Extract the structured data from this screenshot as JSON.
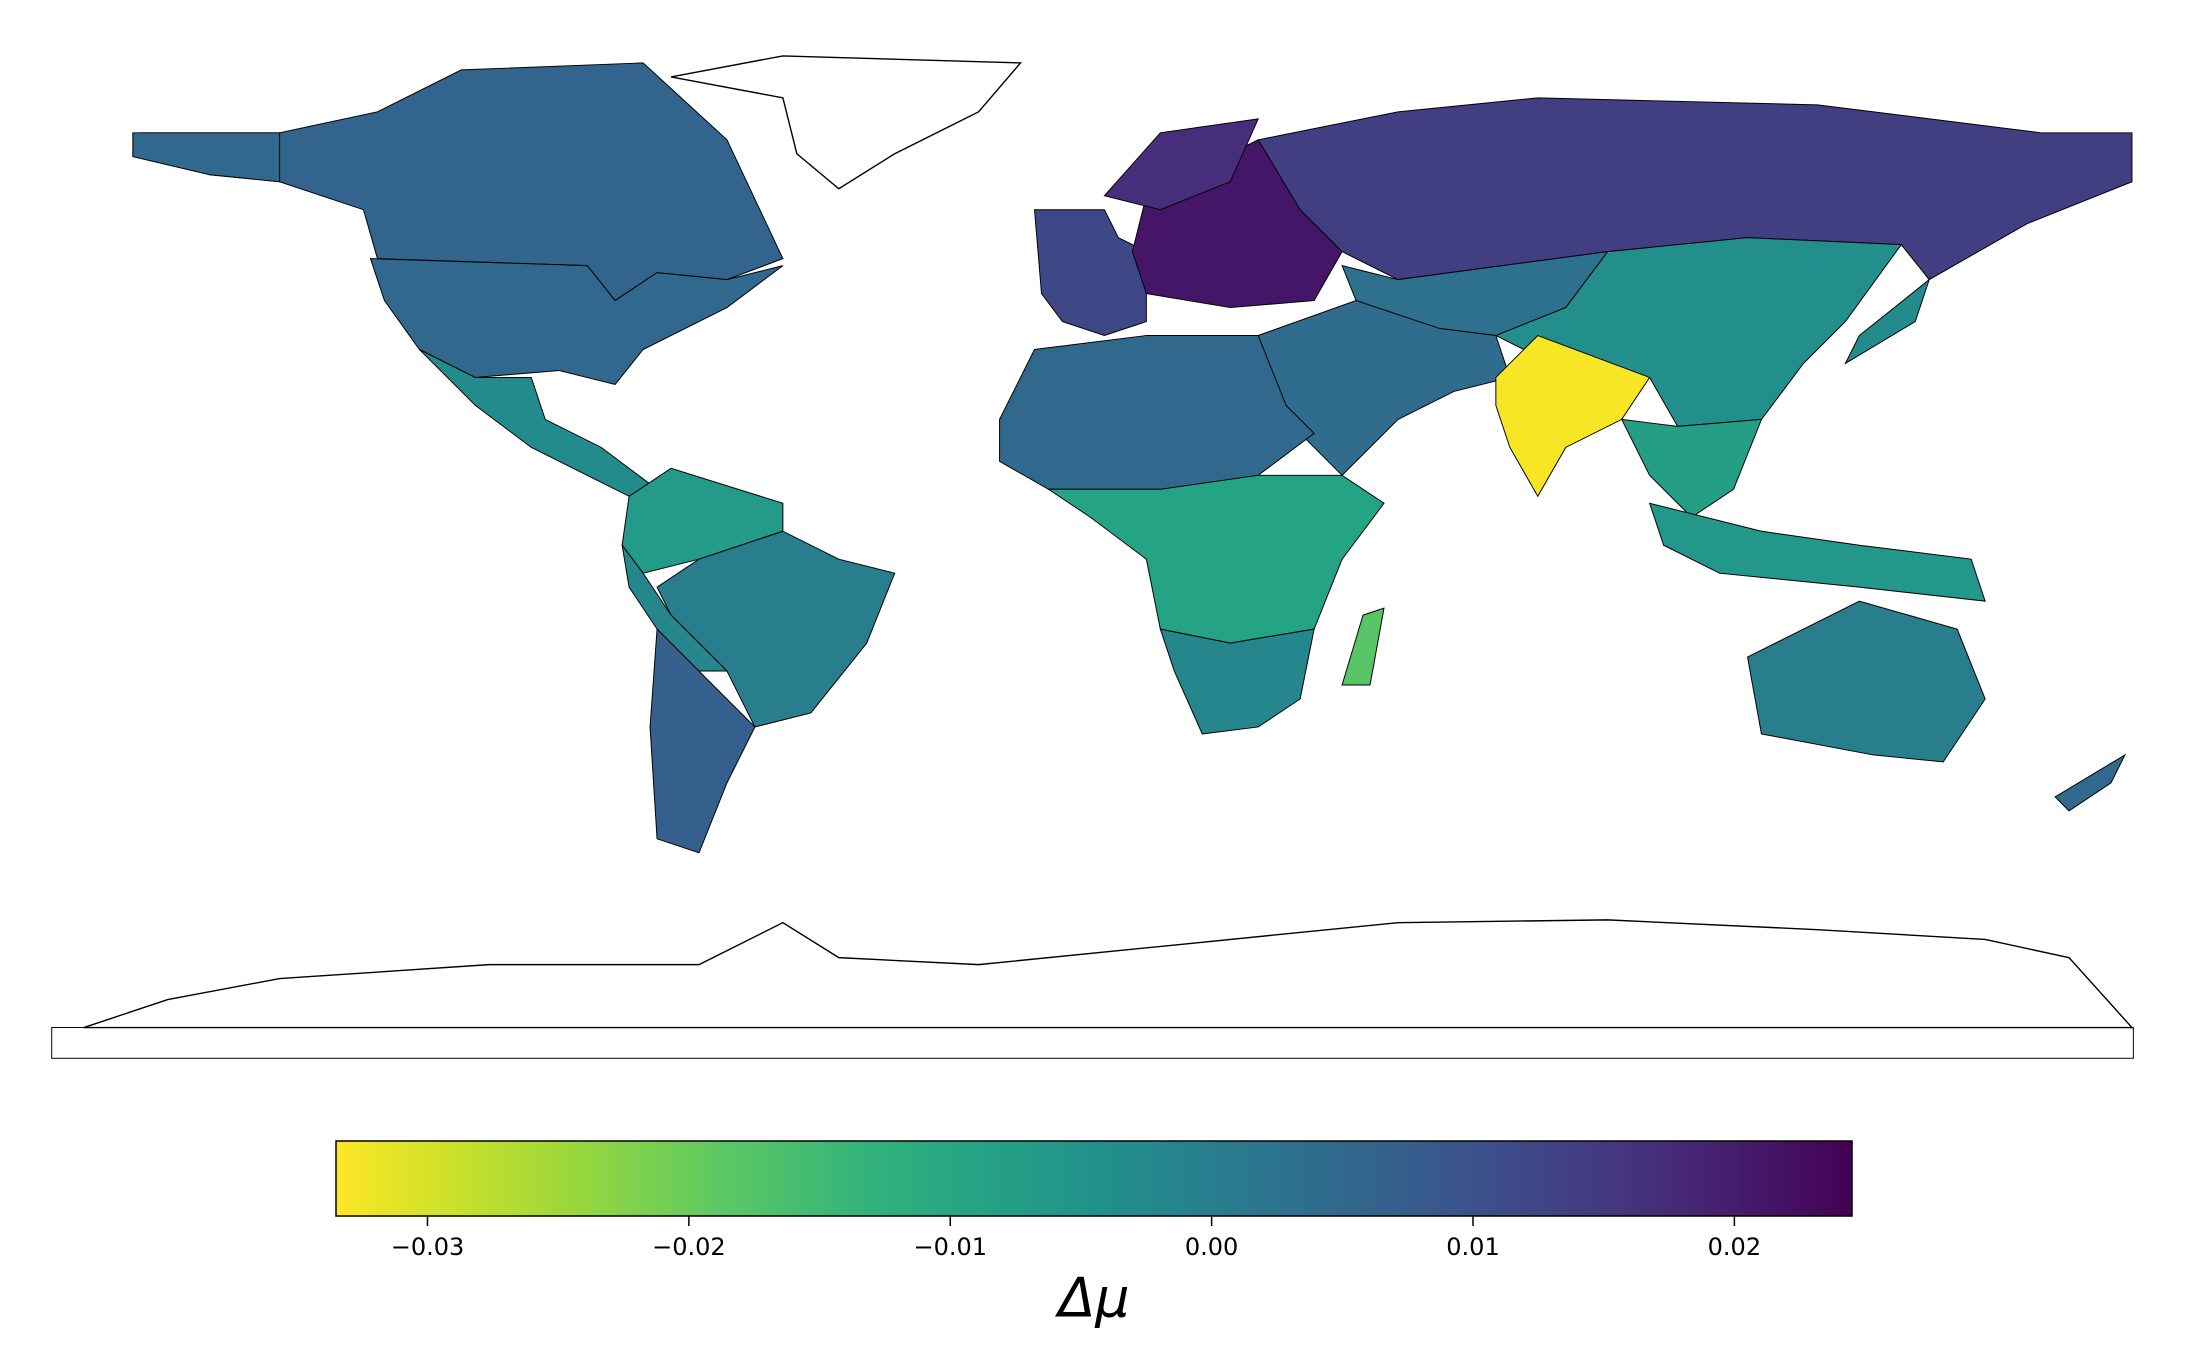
{
  "chart_data": {
    "type": "choropleth",
    "colormap": "viridis_r",
    "values": [
      0.006,
      0.005,
      0.005,
      -0.003,
      -0.007,
      0.0,
      -0.002,
      0.007,
      0.012,
      0.021,
      0.017,
      0.014,
      0.003,
      0.004,
      -0.004,
      -0.033,
      -0.008,
      -0.006,
      -0.003,
      0.005,
      -0.009,
      -0.002,
      -0.018,
      0.0,
      0.005
    ],
    "clim": [
      -0.0335,
      0.0245
    ],
    "cticks": [
      {
        "value": -0.03,
        "label": "−0.03"
      },
      {
        "value": -0.02,
        "label": "−0.02"
      },
      {
        "value": -0.01,
        "label": "−0.01"
      },
      {
        "value": 0,
        "label": "0.00"
      },
      0.01,
      0.02
    ],
    "colorbar_label": "Δμ"
  }
}
